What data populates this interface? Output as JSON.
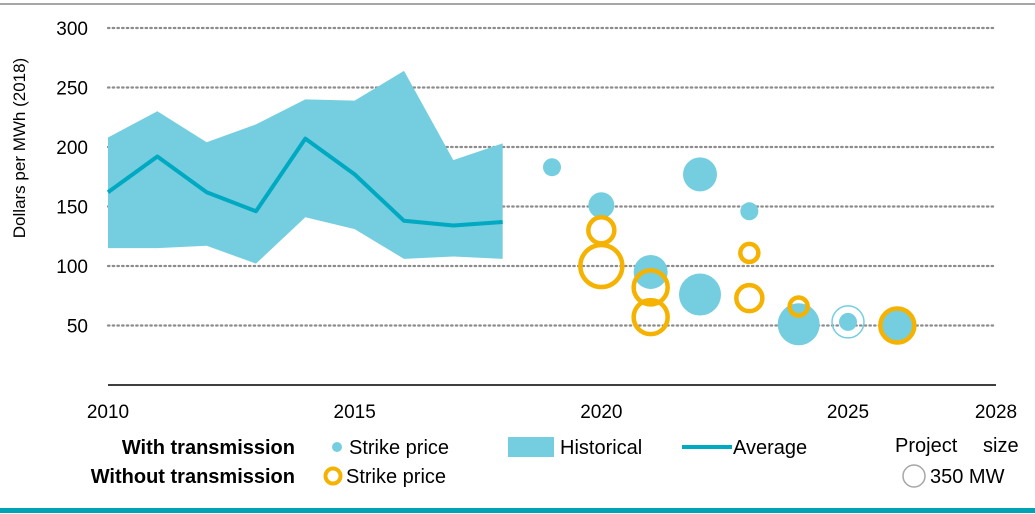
{
  "chart_data": {
    "type": "scatter",
    "ylabel": "Dollars per MWh (2018)",
    "xlim": [
      2010,
      2028
    ],
    "ylim": [
      0,
      300
    ],
    "x_ticks": [
      "2010",
      "2015",
      "2020",
      "2025",
      "2028"
    ],
    "y_ticks": [
      "50",
      "100",
      "150",
      "200",
      "250",
      "300"
    ],
    "grid": "horizontal dotted",
    "colors": {
      "teal": "#00a9c2",
      "light_teal": "#74cedf",
      "orange": "#f6b200",
      "axis": "#000000",
      "grid": "#8c8c8c",
      "frame": "#a6a6a6",
      "bottom_bar": "#00a3b4"
    },
    "historical_band": {
      "name": "Historical",
      "x": [
        2010,
        2011,
        2012,
        2013,
        2014,
        2015,
        2016,
        2017,
        2018
      ],
      "low": [
        115,
        115,
        117,
        102,
        141,
        131,
        106,
        108,
        106
      ],
      "high": [
        208,
        230,
        204,
        219,
        240,
        239,
        264,
        189,
        203
      ]
    },
    "average": {
      "name": "Average",
      "x": [
        2010,
        2011,
        2012,
        2013,
        2014,
        2015,
        2016,
        2017,
        2018
      ],
      "y": [
        162,
        192,
        162,
        146,
        207,
        177,
        138,
        134,
        137
      ]
    },
    "with_transmission": [
      {
        "x": 2019,
        "y": 183,
        "size": "small"
      },
      {
        "x": 2020,
        "y": 151,
        "size": "medium"
      },
      {
        "x": 2021,
        "y": 95,
        "size": "large"
      },
      {
        "x": 2022,
        "y": 177,
        "size": "large"
      },
      {
        "x": 2022,
        "y": 76,
        "size": "xlarge"
      },
      {
        "x": 2023,
        "y": 146,
        "size": "small"
      },
      {
        "x": 2024,
        "y": 51,
        "size": "xlarge"
      },
      {
        "x": 2025,
        "y": 53,
        "size": "small"
      },
      {
        "x": 2026,
        "y": 49,
        "size": "large"
      }
    ],
    "without_transmission": [
      {
        "x": 2020,
        "y": 130,
        "size": "medium"
      },
      {
        "x": 2020,
        "y": 100,
        "size": "xlarge"
      },
      {
        "x": 2021,
        "y": 82,
        "size": "large"
      },
      {
        "x": 2021,
        "y": 57,
        "size": "large"
      },
      {
        "x": 2023,
        "y": 111,
        "size": "small"
      },
      {
        "x": 2023,
        "y": 73,
        "size": "medium"
      },
      {
        "x": 2024,
        "y": 66,
        "size": "small"
      },
      {
        "x": 2026,
        "y": 50,
        "size": "large"
      }
    ]
  },
  "legend": {
    "with_label": "With transmission",
    "without_label": "Without transmission",
    "strike_price_with": "Strike price",
    "strike_price_without": "Strike price",
    "historical": "Historical",
    "average": "Average",
    "project_size_a": "Project",
    "project_size_b": "size",
    "size_example": "350 MW"
  }
}
